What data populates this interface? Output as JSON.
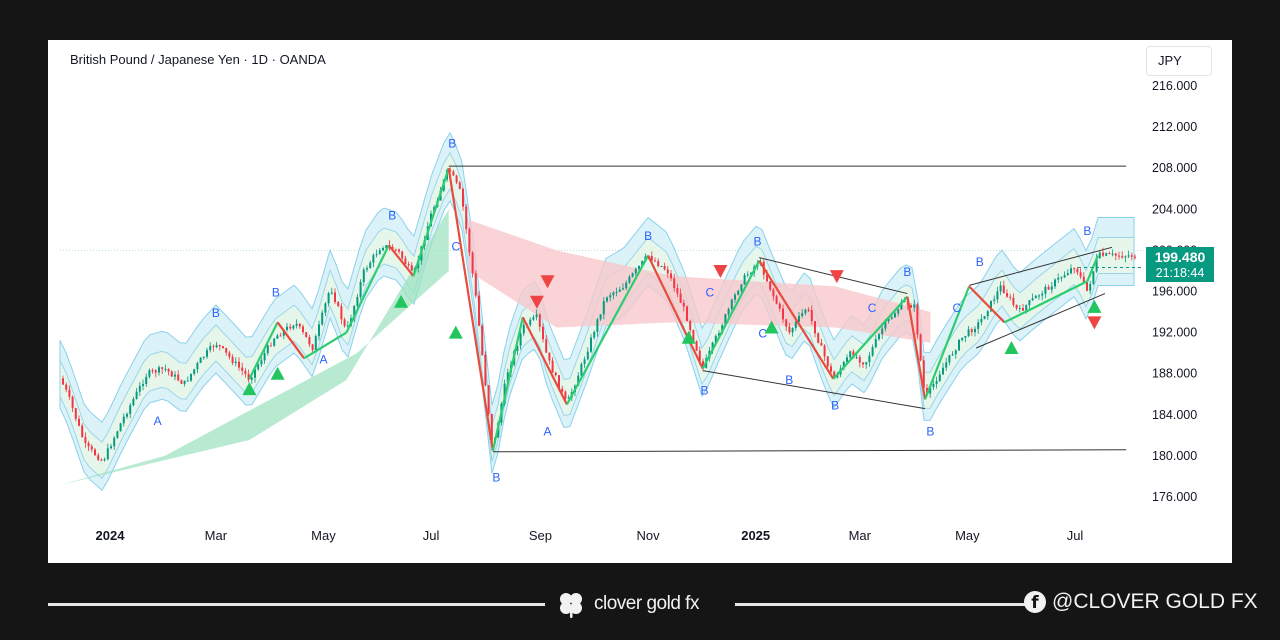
{
  "header": {
    "title": "British Pound / Japanese Yen · 1D · OANDA",
    "currency_button": "JPY"
  },
  "price": {
    "last": "199.480",
    "countdown": "21:18:44",
    "last_value": 199.48
  },
  "colors": {
    "up": "#089981",
    "down": "#f23645",
    "zigzag_up": "#2ecc71",
    "zigzag_down": "#e74c3c",
    "cloud_outer": "#c9ecf7",
    "label": "#2962ff"
  },
  "chart_data": {
    "type": "line",
    "ylim": [
      174.5,
      218
    ],
    "y_ticks": [
      "216.000",
      "212.000",
      "208.000",
      "204.000",
      "200.000",
      "196.000",
      "192.000",
      "188.000",
      "184.000",
      "180.000",
      "176.000"
    ],
    "y_tick_values": [
      216,
      212,
      208,
      204,
      200,
      196,
      192,
      188,
      184,
      180,
      176
    ],
    "x_ticks": [
      "2024",
      "Mar",
      "May",
      "Jul",
      "Sep",
      "Nov",
      "2025",
      "Mar",
      "May",
      "Jul"
    ],
    "x_tick_bold": [
      true,
      false,
      false,
      false,
      false,
      false,
      true,
      false,
      false,
      false
    ],
    "x_tick_dates": [
      "2024-01-01",
      "2024-03-01",
      "2024-05-01",
      "2024-07-01",
      "2024-09-01",
      "2024-11-01",
      "2025-01-01",
      "2025-03-01",
      "2025-05-01",
      "2025-07-01"
    ],
    "price_series": [
      [
        "2023-12-01",
        188.5
      ],
      [
        "2023-12-08",
        186.0
      ],
      [
        "2023-12-18",
        181.0
      ],
      [
        "2023-12-28",
        179.5
      ],
      [
        "2024-01-08",
        183.5
      ],
      [
        "2024-01-22",
        188.0
      ],
      [
        "2024-02-01",
        188.5
      ],
      [
        "2024-02-12",
        187.0
      ],
      [
        "2024-02-22",
        189.5
      ],
      [
        "2024-03-01",
        191.0
      ],
      [
        "2024-03-12",
        189.0
      ],
      [
        "2024-03-20",
        187.5
      ],
      [
        "2024-04-03",
        191.5
      ],
      [
        "2024-04-15",
        193.0
      ],
      [
        "2024-04-25",
        190.5
      ],
      [
        "2024-05-05",
        196.5
      ],
      [
        "2024-05-14",
        192.0
      ],
      [
        "2024-05-24",
        198.0
      ],
      [
        "2024-06-03",
        200.5
      ],
      [
        "2024-06-12",
        200.0
      ],
      [
        "2024-06-21",
        197.5
      ],
      [
        "2024-07-01",
        203.5
      ],
      [
        "2024-07-11",
        208.0
      ],
      [
        "2024-07-18",
        205.5
      ],
      [
        "2024-07-26",
        196.0
      ],
      [
        "2024-08-05",
        180.5
      ],
      [
        "2024-08-13",
        188.0
      ],
      [
        "2024-08-22",
        192.5
      ],
      [
        "2024-08-30",
        193.5
      ],
      [
        "2024-09-05",
        189.5
      ],
      [
        "2024-09-16",
        185.0
      ],
      [
        "2024-09-27",
        190.0
      ],
      [
        "2024-10-08",
        195.5
      ],
      [
        "2024-10-18",
        196.5
      ],
      [
        "2024-11-01",
        199.5
      ],
      [
        "2024-11-12",
        198.0
      ],
      [
        "2024-11-22",
        194.0
      ],
      [
        "2024-12-02",
        188.5
      ],
      [
        "2024-12-12",
        192.5
      ],
      [
        "2024-12-24",
        197.0
      ],
      [
        "2025-01-03",
        199.0
      ],
      [
        "2025-01-10",
        196.0
      ],
      [
        "2025-01-20",
        192.0
      ],
      [
        "2025-01-30",
        194.5
      ],
      [
        "2025-02-06",
        191.0
      ],
      [
        "2025-02-14",
        187.5
      ],
      [
        "2025-02-24",
        190.0
      ],
      [
        "2025-03-04",
        189.0
      ],
      [
        "2025-03-14",
        192.5
      ],
      [
        "2025-03-26",
        195.0
      ],
      [
        "2025-04-01",
        194.5
      ],
      [
        "2025-04-07",
        185.5
      ],
      [
        "2025-04-15",
        188.0
      ],
      [
        "2025-04-28",
        191.5
      ],
      [
        "2025-05-08",
        193.0
      ],
      [
        "2025-05-20",
        196.5
      ],
      [
        "2025-05-30",
        194.0
      ],
      [
        "2025-06-09",
        195.5
      ],
      [
        "2025-06-20",
        197.0
      ],
      [
        "2025-07-01",
        198.5
      ],
      [
        "2025-07-08",
        196.0
      ],
      [
        "2025-07-14",
        199.5
      ]
    ],
    "zigzag": [
      [
        "2024-03-20",
        187.5
      ],
      [
        "2024-04-05",
        193.0
      ],
      [
        "2024-04-20",
        189.5
      ],
      [
        "2024-05-14",
        192.0
      ],
      [
        "2024-06-07",
        200.5
      ],
      [
        "2024-06-21",
        197.5
      ],
      [
        "2024-07-11",
        208.0
      ],
      [
        "2024-08-05",
        180.5
      ],
      [
        "2024-08-22",
        193.5
      ],
      [
        "2024-09-16",
        185.0
      ],
      [
        "2024-11-01",
        199.5
      ],
      [
        "2024-12-02",
        188.5
      ],
      [
        "2025-01-03",
        199.0
      ],
      [
        "2025-02-14",
        187.5
      ],
      [
        "2025-03-28",
        195.5
      ],
      [
        "2025-04-07",
        185.5
      ],
      [
        "2025-05-02",
        196.5
      ],
      [
        "2025-05-22",
        193.0
      ],
      [
        "2025-07-08",
        197.0
      ],
      [
        "2025-07-14",
        199.5
      ]
    ],
    "annotations": [
      {
        "text": "B",
        "date": "2024-07-13",
        "y": 210.0
      },
      {
        "text": "B",
        "date": "2024-06-09",
        "y": 203.0
      },
      {
        "text": "B",
        "date": "2024-04-04",
        "y": 195.5
      },
      {
        "text": "B",
        "date": "2024-03-01",
        "y": 193.5
      },
      {
        "text": "A",
        "date": "2024-05-01",
        "y": 189.0
      },
      {
        "text": "A",
        "date": "2024-01-28",
        "y": 183.0
      },
      {
        "text": "B",
        "date": "2024-08-07",
        "y": 177.5
      },
      {
        "text": "A",
        "date": "2024-09-05",
        "y": 182.0
      },
      {
        "text": "B",
        "date": "2024-11-01",
        "y": 201.0
      },
      {
        "text": "B",
        "date": "2025-01-02",
        "y": 200.5
      },
      {
        "text": "B",
        "date": "2024-12-03",
        "y": 186.0
      },
      {
        "text": "B",
        "date": "2025-01-20",
        "y": 187.0
      },
      {
        "text": "B",
        "date": "2025-02-15",
        "y": 184.5
      },
      {
        "text": "C",
        "date": "2025-03-08",
        "y": 194.0
      },
      {
        "text": "B",
        "date": "2025-03-28",
        "y": 197.5
      },
      {
        "text": "B",
        "date": "2025-04-10",
        "y": 182.0
      },
      {
        "text": "C",
        "date": "2025-04-25",
        "y": 194.0
      },
      {
        "text": "B",
        "date": "2025-05-08",
        "y": 198.5
      },
      {
        "text": "B",
        "date": "2025-07-08",
        "y": 201.5
      },
      {
        "text": "C",
        "date": "2024-07-15",
        "y": 200.0
      },
      {
        "text": "C",
        "date": "2024-12-06",
        "y": 195.5
      },
      {
        "text": "C",
        "date": "2025-01-05",
        "y": 191.5
      }
    ],
    "channels": [
      {
        "from": [
          "2024-07-11",
          208.2
        ],
        "to": [
          "2025-07-30",
          208.2
        ]
      },
      {
        "from": [
          "2024-08-05",
          180.4
        ],
        "to": [
          "2025-07-30",
          180.6
        ]
      },
      {
        "from": [
          "2025-01-03",
          199.3
        ],
        "to": [
          "2025-03-28",
          195.8
        ]
      },
      {
        "from": [
          "2024-12-02",
          188.3
        ],
        "to": [
          "2025-04-07",
          184.6
        ]
      },
      {
        "from": [
          "2025-05-02",
          196.6
        ],
        "to": [
          "2025-07-22",
          200.3
        ]
      },
      {
        "from": [
          "2025-05-06",
          190.5
        ],
        "to": [
          "2025-07-18",
          195.8
        ]
      }
    ],
    "up_signals": [
      [
        "2024-03-20",
        186.5
      ],
      [
        "2024-04-05",
        188.0
      ],
      [
        "2024-06-14",
        195.0
      ],
      [
        "2024-07-15",
        192.0
      ],
      [
        "2024-11-24",
        191.5
      ],
      [
        "2025-01-10",
        192.5
      ],
      [
        "2025-05-26",
        190.5
      ],
      [
        "2025-07-12",
        194.5
      ]
    ],
    "down_signals": [
      [
        "2024-08-30",
        195.0
      ],
      [
        "2024-09-05",
        197.0
      ],
      [
        "2024-12-12",
        198.0
      ],
      [
        "2025-02-16",
        197.5
      ],
      [
        "2025-07-12",
        193.0
      ]
    ]
  }
}
